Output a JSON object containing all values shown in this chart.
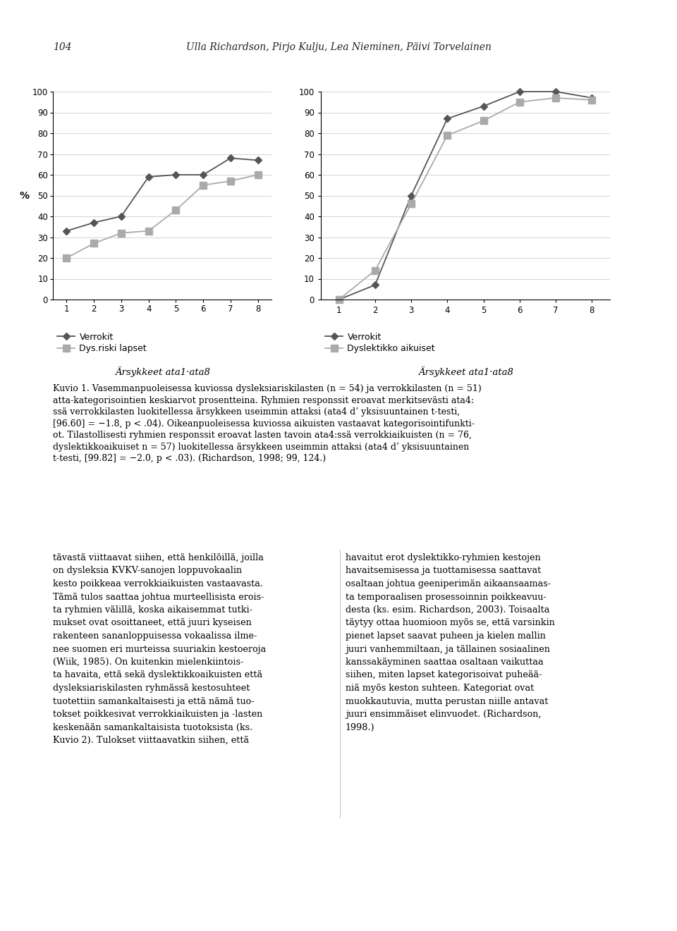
{
  "left": {
    "verrokit": [
      33,
      37,
      40,
      59,
      60,
      60,
      68,
      67
    ],
    "dys_riski": [
      20,
      27,
      32,
      33,
      43,
      55,
      57,
      60
    ],
    "legend1": "Verrokit",
    "legend2": "Dys.riski lapset",
    "ylabel": "%"
  },
  "right": {
    "verrokit": [
      0,
      7,
      50,
      87,
      93,
      100,
      100,
      97
    ],
    "dys_adult": [
      0,
      14,
      46,
      79,
      86,
      95,
      97,
      96
    ],
    "legend1": "Verrokit",
    "legend2": "Dyslektikko aikuiset"
  },
  "xlabel": "Ärsykkeet ata1·ata8",
  "x": [
    1,
    2,
    3,
    4,
    5,
    6,
    7,
    8
  ],
  "ylim": [
    0,
    100
  ],
  "yticks": [
    0,
    10,
    20,
    30,
    40,
    50,
    60,
    70,
    80,
    90,
    100
  ],
  "xticks": [
    1,
    2,
    3,
    4,
    5,
    6,
    7,
    8
  ],
  "color_dark": "#555555",
  "color_light": "#aaaaaa",
  "header": "Ulla Richardson, Pirjo Kulju, Lea Nieminen, Päivi Torvelainen",
  "page_num": "104",
  "caption_line1": "Kuvio 1. Vasemmanpuoleisessa kuviossa dysleksiariskilasten (n = 54) ja verrokkilasten (n = 51)",
  "caption_line2": "atta-kategorisointien keskiarvot prosentteina. Ryhmien responssit eroavat merkitsevästi ata4:",
  "caption_line3": "ssä verrokkilasten luokitellessa ärsykkeen useimmin attaksi (ata4 d’ yksisuuntainen t-testi,",
  "caption_line4": "[96.60] = −1.8, p < .04). Oikeanpuoleisessa kuviossa aikuisten vastaavat kategorisointifunkti-",
  "caption_line5": "ot. Tilastollisesti ryhmien responssit eroavat lasten tavoin ata4:ssä verrokkiaikuisten (n = 76,",
  "caption_line6": "dyslektikkoaikuiset n = 57) luokitellessa ärsykkeen useimmin attaksi (ata4 d’ yksisuuntainen",
  "caption_line7": "t-testi, [99.82] = −2.0, p < .03). (Richardson, 1998; 99, 124.)",
  "body_left_lines": [
    "tävastä viittaavat siihen, että henkilöillä, joilla",
    "on dysleksia KVKV-sanojen loppuvokaalin",
    "kesto poikkeaa verrokkiaikuisten vastaavasta.",
    "Tämä tulos saattaa johtua murteellisista erois-",
    "ta ryhmien välillä, koska aikaisemmat tutki-",
    "mukset ovat osoittaneet, että juuri kyseisen",
    "rakenteen sananloppuisessa vokaalissa ilme-",
    "nee suomen eri murteissa suuriakin kestoeroja",
    "(Wiik, 1985). On kuitenkin mielenkiintois-",
    "ta havaita, että sekä dyslektikkoaikuisten että",
    "dysleksiariskilasten ryhmässä kestosuhteet",
    "tuotettiin samankaltaisesti ja että nämä tuo-",
    "tokset poikkesivat verrokkiaikuisten ja -lasten",
    "keskenään samankaltaisista tuotoksista (ks.",
    "Kuvio 2). Tulokset viittaavatkin siihen, että"
  ],
  "body_right_lines": [
    "havaitut erot dyslektikko-ryhmien kestojen",
    "havaitsemisessa ja tuottamisessa saattavat",
    "osaltaan johtua geeniperimän aikaansaamas-",
    "ta temporaalisen prosessoinnin poikkeavuu-",
    "desta (ks. esim. Richardson, 2003). Toisaalta",
    "täytyy ottaa huomioon myös se, että varsinkin",
    "pienet lapset saavat puheen ja kielen mallin",
    "juuri vanhemmiltaan, ja tällainen sosiaalinen",
    "kanssakäyminen saattaa osaltaan vaikuttaa",
    "siihen, miten lapset kategorisoivat puheää-",
    "niä myös keston suhteen. Kategoriat ovat",
    "muokkautuvia, mutta perustan niille antavat",
    "juuri ensimmäiset elinvuodet. (Richardson,",
    "1998.)"
  ]
}
